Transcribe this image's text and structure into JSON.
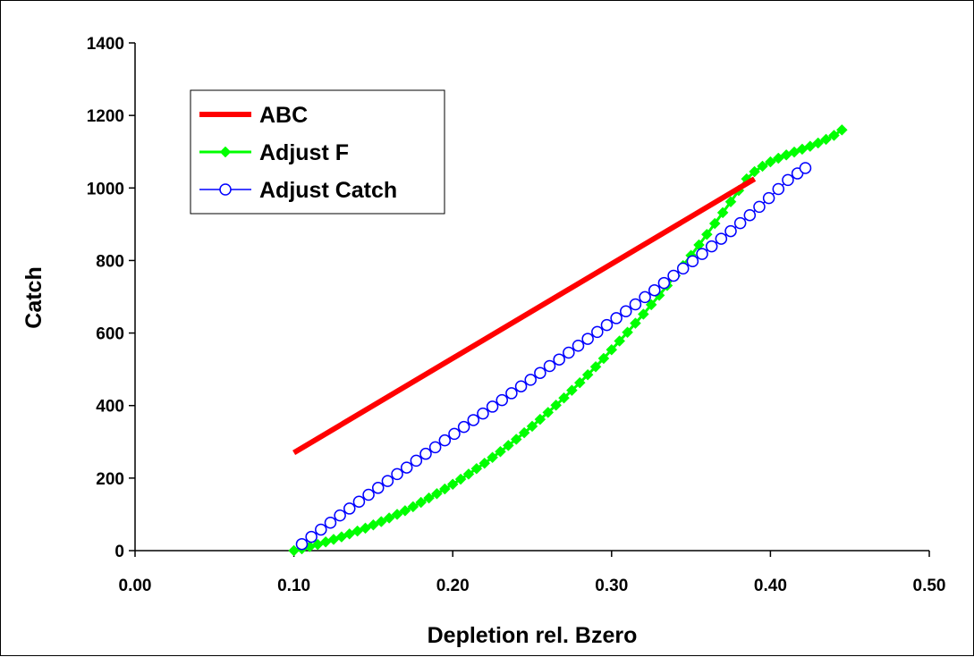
{
  "chart_data": {
    "type": "line",
    "xlabel": "Depletion rel. Bzero",
    "ylabel": "Catch",
    "xlim": [
      0.0,
      0.5
    ],
    "ylim": [
      0,
      1400
    ],
    "x_ticks": [
      "0.00",
      "0.10",
      "0.20",
      "0.30",
      "0.40",
      "0.50"
    ],
    "y_ticks": [
      "0",
      "200",
      "400",
      "600",
      "800",
      "1000",
      "1200",
      "1400"
    ],
    "grid": false,
    "legend_position": "top-left",
    "series": [
      {
        "name": "ABC",
        "color": "#ff0000",
        "marker": "none",
        "x": [
          0.1,
          0.39
        ],
        "y": [
          270,
          1025
        ]
      },
      {
        "name": "Adjust F",
        "color": "#00ff00",
        "marker": "diamond",
        "x": [
          0.1,
          0.105,
          0.11,
          0.115,
          0.12,
          0.125,
          0.13,
          0.135,
          0.14,
          0.145,
          0.15,
          0.155,
          0.16,
          0.165,
          0.17,
          0.175,
          0.18,
          0.185,
          0.19,
          0.195,
          0.2,
          0.205,
          0.21,
          0.215,
          0.22,
          0.225,
          0.23,
          0.235,
          0.24,
          0.245,
          0.25,
          0.255,
          0.26,
          0.265,
          0.27,
          0.275,
          0.28,
          0.285,
          0.29,
          0.295,
          0.3,
          0.305,
          0.31,
          0.315,
          0.32,
          0.325,
          0.33,
          0.335,
          0.34,
          0.345,
          0.35,
          0.355,
          0.36,
          0.365,
          0.37,
          0.375,
          0.38,
          0.385,
          0.39,
          0.395,
          0.4,
          0.405,
          0.41,
          0.415,
          0.42,
          0.425,
          0.43,
          0.435,
          0.44,
          0.445
        ],
        "y": [
          0,
          5,
          11,
          17,
          24,
          31,
          38,
          46,
          54,
          62,
          71,
          80,
          90,
          100,
          110,
          121,
          133,
          145,
          157,
          170,
          183,
          197,
          211,
          226,
          241,
          257,
          273,
          290,
          307,
          325,
          343,
          362,
          381,
          401,
          421,
          442,
          463,
          485,
          507,
          530,
          554,
          578,
          602,
          627,
          652,
          678,
          704,
          731,
          758,
          786,
          814,
          843,
          872,
          902,
          932,
          962,
          993,
          1025,
          1045,
          1060,
          1072,
          1082,
          1091,
          1099,
          1107,
          1115,
          1124,
          1134,
          1145,
          1160
        ]
      },
      {
        "name": "Adjust Catch",
        "color": "#0000ff",
        "marker": "open-circle",
        "x": [
          0.105,
          0.111,
          0.117,
          0.123,
          0.129,
          0.135,
          0.141,
          0.147,
          0.153,
          0.159,
          0.165,
          0.171,
          0.177,
          0.183,
          0.189,
          0.195,
          0.201,
          0.207,
          0.213,
          0.219,
          0.225,
          0.231,
          0.237,
          0.243,
          0.249,
          0.255,
          0.261,
          0.267,
          0.273,
          0.279,
          0.285,
          0.291,
          0.297,
          0.303,
          0.309,
          0.315,
          0.321,
          0.327,
          0.333,
          0.339,
          0.345,
          0.351,
          0.357,
          0.363,
          0.369,
          0.375,
          0.381,
          0.387,
          0.393,
          0.399,
          0.405,
          0.411,
          0.417,
          0.422
        ],
        "y": [
          18,
          38,
          58,
          77,
          97,
          116,
          135,
          154,
          173,
          192,
          211,
          229,
          248,
          267,
          285,
          304,
          322,
          341,
          360,
          378,
          397,
          415,
          434,
          453,
          471,
          490,
          509,
          527,
          546,
          565,
          584,
          603,
          622,
          641,
          660,
          679,
          699,
          718,
          738,
          758,
          778,
          798,
          818,
          839,
          860,
          881,
          903,
          925,
          948,
          972,
          997,
          1022,
          1040,
          1055
        ]
      }
    ]
  }
}
